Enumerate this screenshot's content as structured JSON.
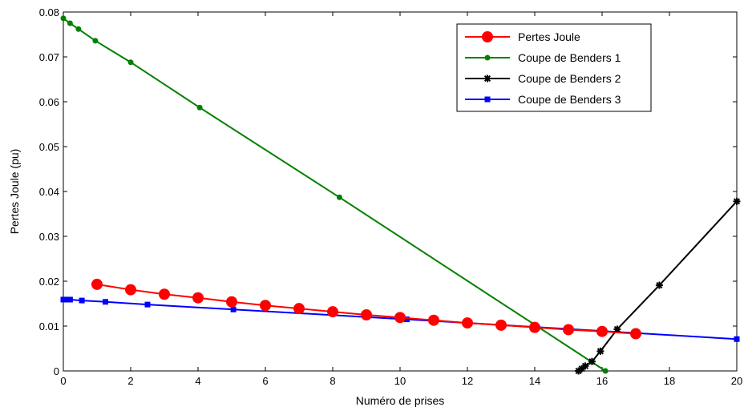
{
  "chart_data": {
    "type": "line",
    "title": "",
    "xlabel": "Numéro de prises",
    "ylabel": "Pertes Joule (pu)",
    "xlim": [
      0,
      20
    ],
    "ylim": [
      0,
      0.08
    ],
    "xticks": [
      0,
      2,
      4,
      6,
      8,
      10,
      12,
      14,
      16,
      18,
      20
    ],
    "yticks": [
      0,
      0.01,
      0.02,
      0.03,
      0.04,
      0.05,
      0.06,
      0.07,
      0.08
    ],
    "xtick_labels": [
      "0",
      "2",
      "4",
      "6",
      "8",
      "10",
      "12",
      "14",
      "16",
      "18",
      "20"
    ],
    "ytick_labels": [
      "0",
      "0.01",
      "0.02",
      "0.03",
      "0.04",
      "0.05",
      "0.06",
      "0.07",
      "0.08"
    ],
    "grid": false,
    "legend_position": "top-right",
    "series": [
      {
        "name": "Pertes Joule",
        "color": "#ff0000",
        "marker": "circle",
        "x": [
          1,
          2,
          3,
          4,
          5,
          6,
          7,
          8,
          9,
          10,
          11,
          12,
          13,
          14,
          15,
          16,
          17
        ],
        "y": [
          0.0193,
          0.0181,
          0.0171,
          0.0163,
          0.0154,
          0.0146,
          0.0139,
          0.0132,
          0.0125,
          0.0119,
          0.0113,
          0.0107,
          0.0102,
          0.0097,
          0.0092,
          0.0088,
          0.0083
        ]
      },
      {
        "name": "Coupe de Benders 1",
        "color": "#008000",
        "marker": "dot",
        "x": [
          0,
          0.2,
          0.45,
          0.95,
          2.0,
          4.05,
          8.2,
          16.1
        ],
        "y": [
          0.0786,
          0.0775,
          0.0762,
          0.0736,
          0.0688,
          0.0587,
          0.0387,
          0.0
        ]
      },
      {
        "name": "Coupe de Benders 2",
        "color": "#000000",
        "marker": "star",
        "x": [
          15.3,
          15.4,
          15.5,
          15.7,
          15.95,
          16.45,
          17.7,
          20.0
        ],
        "y": [
          0.0,
          0.0005,
          0.0011,
          0.0021,
          0.0044,
          0.0093,
          0.0191,
          0.0378
        ]
      },
      {
        "name": "Coupe de Benders 3",
        "color": "#0000ff",
        "marker": "square",
        "x": [
          0,
          0.05,
          0.1,
          0.2,
          0.55,
          1.25,
          2.5,
          5.05,
          10.2,
          20.0
        ],
        "y": [
          0.0159,
          0.0159,
          0.0159,
          0.0159,
          0.0157,
          0.0154,
          0.0148,
          0.0137,
          0.0115,
          0.0071
        ]
      }
    ]
  }
}
